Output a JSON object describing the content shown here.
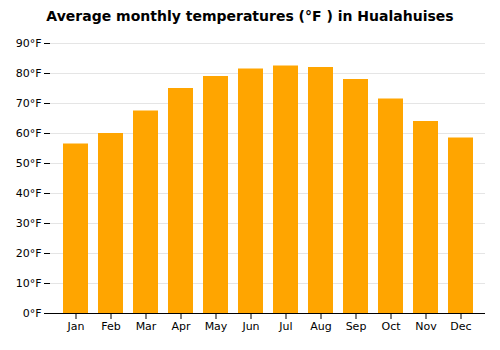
{
  "chart_data": {
    "type": "bar",
    "title": "Average monthly temperatures (°F ) in Hualahuises",
    "categories": [
      "Jan",
      "Feb",
      "Mar",
      "Apr",
      "May",
      "Jun",
      "Jul",
      "Aug",
      "Sep",
      "Oct",
      "Nov",
      "Dec"
    ],
    "values": [
      56.5,
      60.0,
      67.5,
      75.0,
      79.0,
      81.5,
      82.5,
      82.0,
      78.0,
      71.5,
      64.0,
      58.5
    ],
    "color": "#FFA500",
    "ylim": [
      0,
      90
    ],
    "yticks": [
      {
        "value": 0,
        "label": "0°F"
      },
      {
        "value": 10,
        "label": "10°F"
      },
      {
        "value": 20,
        "label": "20°F"
      },
      {
        "value": 30,
        "label": "30°F"
      },
      {
        "value": 40,
        "label": "40°F"
      },
      {
        "value": 50,
        "label": "50°F"
      },
      {
        "value": 60,
        "label": "60°F"
      },
      {
        "value": 70,
        "label": "70°F"
      },
      {
        "value": 80,
        "label": "80°F"
      },
      {
        "value": 90,
        "label": "90°F"
      }
    ],
    "grid": true
  }
}
